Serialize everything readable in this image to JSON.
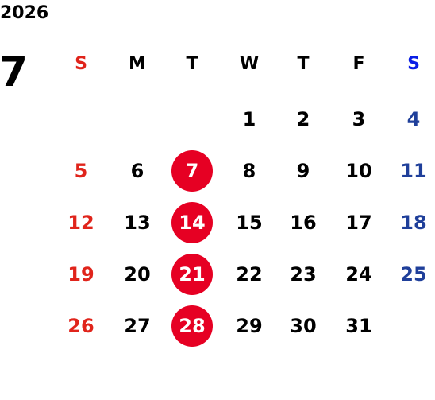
{
  "calendar": {
    "year": "2026",
    "month": "7",
    "weekdays": [
      "S",
      "M",
      "T",
      "W",
      "T",
      "F",
      "S"
    ],
    "weeks": [
      [
        null,
        null,
        null,
        "1",
        "2",
        "3",
        "4"
      ],
      [
        "5",
        "6",
        "7",
        "8",
        "9",
        "10",
        "11"
      ],
      [
        "12",
        "13",
        "14",
        "15",
        "16",
        "17",
        "18"
      ],
      [
        "19",
        "20",
        "21",
        "22",
        "23",
        "24",
        "25"
      ],
      [
        "26",
        "27",
        "28",
        "29",
        "30",
        "31",
        null
      ]
    ],
    "colors": {
      "default": "#000000",
      "sunday": "#e0241b",
      "saturday_header": "#0a1ee6",
      "saturday": "#1f3f9a",
      "highlight": "#e60023",
      "highlight_text": "#ffffff"
    },
    "highlight_column": 2
  }
}
